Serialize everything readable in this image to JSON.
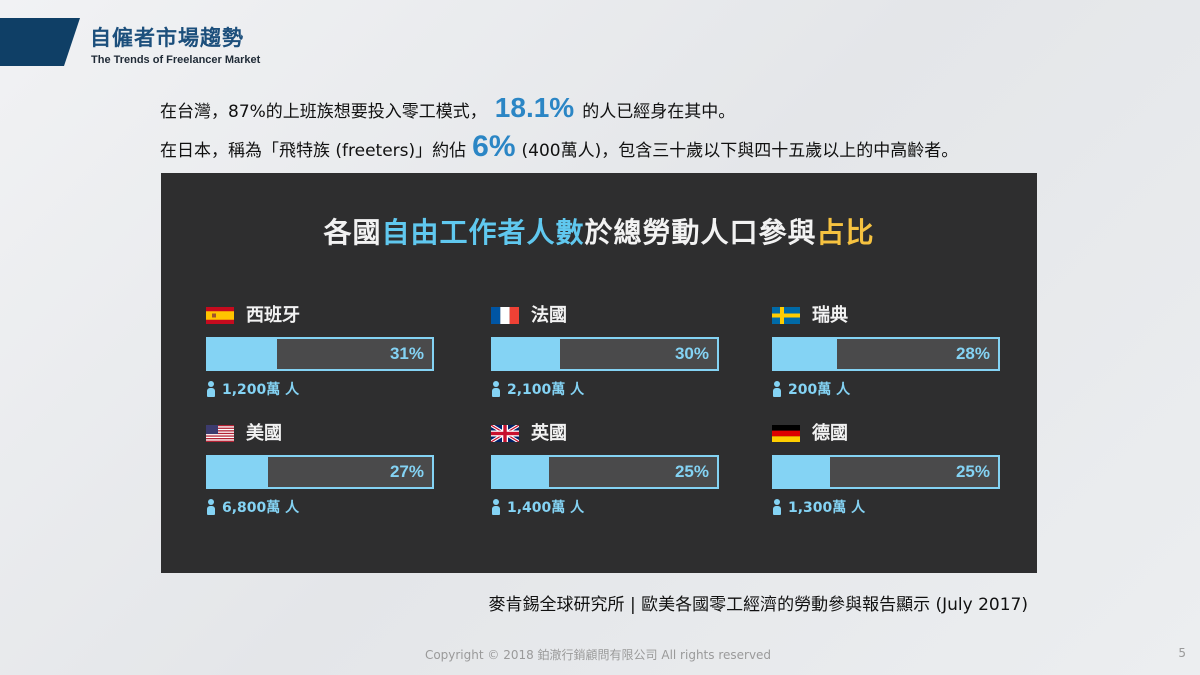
{
  "header": {
    "title": "自僱者市場趨勢",
    "subtitle": "The Trends of Freelancer Market"
  },
  "intro": {
    "line1_pre": "在台灣，87%的上班族想要投入零工模式，",
    "line1_highlight": "18.1%",
    "line1_post": "的人已經身在其中。",
    "line2_pre": "在日本，稱為「飛特族 (freeters)」約佔",
    "line2_highlight": "6%",
    "line2_post": "(400萬人)，包含三十歲以下與四十五歲以上的中高齡者。"
  },
  "panel": {
    "title_part1": "各國",
    "title_part2": "自由工作者人數",
    "title_part3": "於總勞動人口參與",
    "title_part4": "占比",
    "countries": [
      {
        "name": "西班牙",
        "flag": "spain-flag-icon",
        "share": 31,
        "share_label": "31%",
        "people": "1,200萬 人"
      },
      {
        "name": "法國",
        "flag": "france-flag-icon",
        "share": 30,
        "share_label": "30%",
        "people": "2,100萬 人"
      },
      {
        "name": "瑞典",
        "flag": "sweden-flag-icon",
        "share": 28,
        "share_label": "28%",
        "people": "200萬 人"
      },
      {
        "name": "美國",
        "flag": "usa-flag-icon",
        "share": 27,
        "share_label": "27%",
        "people": "6,800萬 人"
      },
      {
        "name": "英國",
        "flag": "uk-flag-icon",
        "share": 25,
        "share_label": "25%",
        "people": "1,400萬 人"
      },
      {
        "name": "德國",
        "flag": "germany-flag-icon",
        "share": 25,
        "share_label": "25%",
        "people": "1,300萬 人"
      }
    ]
  },
  "source": "麥肯錫全球研究所 | 歐美各國零工經濟的勞動參與報告顯示 (July 2017)",
  "footer": {
    "copyright": "Copyright © 2018 鉑澈行銷顧問有限公司 All rights reserved",
    "page": "5"
  },
  "colors": {
    "accent": "#2b86c5",
    "panel_bg": "#2e2e2f",
    "bar": "#84d3f4",
    "title_blue": "#60c8ef",
    "title_yellow": "#f6c240",
    "header_bar": "#0f3f66"
  }
}
